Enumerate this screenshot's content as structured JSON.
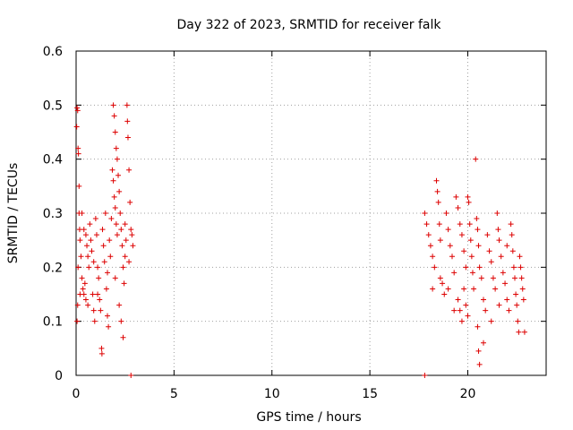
{
  "chart_data": {
    "type": "scatter",
    "title": "Day 322 of 2023, SRMTID for receiver falk",
    "xlabel": "GPS time / hours",
    "ylabel": "SRMTID / TECUs",
    "xlim": [
      0,
      24
    ],
    "ylim": [
      0,
      0.6
    ],
    "xticks": [
      0,
      5,
      10,
      15,
      20
    ],
    "xtick_labels": [
      "0",
      "5",
      "10",
      "15",
      "20"
    ],
    "yticks": [
      0,
      0.1,
      0.2,
      0.3,
      0.4,
      0.5,
      0.6
    ],
    "ytick_labels": [
      "0",
      "0.1",
      "0.2",
      "0.3",
      "0.4",
      "0.5",
      "0.6"
    ],
    "grid": true,
    "marker": "+",
    "color": "#dd0000",
    "series": [
      {
        "name": "SRMTID",
        "points": [
          [
            0.03,
            0.46
          ],
          [
            0.05,
            0.495
          ],
          [
            0.08,
            0.49
          ],
          [
            0.1,
            0.42
          ],
          [
            0.12,
            0.41
          ],
          [
            0.15,
            0.35
          ],
          [
            0.05,
            0.1
          ],
          [
            0.08,
            0.13
          ],
          [
            0.1,
            0.2
          ],
          [
            0.15,
            0.3
          ],
          [
            0.18,
            0.27
          ],
          [
            0.2,
            0.25
          ],
          [
            0.25,
            0.22
          ],
          [
            0.3,
            0.18
          ],
          [
            0.35,
            0.16
          ],
          [
            0.4,
            0.15
          ],
          [
            0.45,
            0.17
          ],
          [
            0.5,
            0.14
          ],
          [
            0.3,
            0.3
          ],
          [
            0.4,
            0.27
          ],
          [
            0.5,
            0.26
          ],
          [
            0.55,
            0.24
          ],
          [
            0.6,
            0.22
          ],
          [
            0.65,
            0.2
          ],
          [
            0.7,
            0.28
          ],
          [
            0.75,
            0.25
          ],
          [
            0.8,
            0.23
          ],
          [
            0.85,
            0.15
          ],
          [
            0.9,
            0.12
          ],
          [
            0.95,
            0.1
          ],
          [
            1.0,
            0.29
          ],
          [
            1.05,
            0.26
          ],
          [
            1.1,
            0.2
          ],
          [
            1.15,
            0.18
          ],
          [
            1.2,
            0.14
          ],
          [
            1.25,
            0.12
          ],
          [
            1.3,
            0.05
          ],
          [
            1.32,
            0.04
          ],
          [
            1.35,
            0.27
          ],
          [
            1.4,
            0.24
          ],
          [
            1.45,
            0.21
          ],
          [
            1.5,
            0.3
          ],
          [
            1.55,
            0.16
          ],
          [
            1.6,
            0.11
          ],
          [
            1.65,
            0.09
          ],
          [
            1.7,
            0.25
          ],
          [
            1.75,
            0.22
          ],
          [
            1.8,
            0.29
          ],
          [
            1.85,
            0.38
          ],
          [
            1.9,
            0.36
          ],
          [
            1.95,
            0.33
          ],
          [
            2.0,
            0.31
          ],
          [
            2.05,
            0.28
          ],
          [
            2.1,
            0.26
          ],
          [
            1.9,
            0.5
          ],
          [
            1.95,
            0.48
          ],
          [
            2.0,
            0.45
          ],
          [
            2.05,
            0.42
          ],
          [
            2.1,
            0.4
          ],
          [
            2.15,
            0.37
          ],
          [
            2.2,
            0.34
          ],
          [
            2.25,
            0.3
          ],
          [
            2.3,
            0.27
          ],
          [
            2.35,
            0.24
          ],
          [
            2.4,
            0.2
          ],
          [
            2.45,
            0.17
          ],
          [
            2.5,
            0.28
          ],
          [
            2.55,
            0.25
          ],
          [
            2.6,
            0.5
          ],
          [
            2.62,
            0.47
          ],
          [
            2.65,
            0.44
          ],
          [
            2.7,
            0.38
          ],
          [
            2.75,
            0.32
          ],
          [
            2.8,
            0.27
          ],
          [
            2.85,
            0.26
          ],
          [
            2.9,
            0.24
          ],
          [
            2.4,
            0.07
          ],
          [
            2.8,
            0.0
          ],
          [
            2.2,
            0.13
          ],
          [
            2.3,
            0.1
          ],
          [
            1.1,
            0.15
          ],
          [
            0.2,
            0.15
          ],
          [
            0.6,
            0.13
          ],
          [
            0.9,
            0.21
          ],
          [
            1.6,
            0.19
          ],
          [
            2.0,
            0.18
          ],
          [
            2.5,
            0.22
          ],
          [
            2.7,
            0.21
          ],
          [
            17.8,
            0.3
          ],
          [
            17.9,
            0.28
          ],
          [
            18.0,
            0.26
          ],
          [
            18.1,
            0.24
          ],
          [
            18.2,
            0.22
          ],
          [
            18.3,
            0.2
          ],
          [
            18.4,
            0.36
          ],
          [
            18.45,
            0.34
          ],
          [
            18.5,
            0.32
          ],
          [
            18.55,
            0.28
          ],
          [
            18.6,
            0.25
          ],
          [
            18.7,
            0.17
          ],
          [
            18.8,
            0.15
          ],
          [
            18.9,
            0.3
          ],
          [
            19.0,
            0.27
          ],
          [
            19.1,
            0.24
          ],
          [
            19.2,
            0.22
          ],
          [
            19.3,
            0.19
          ],
          [
            19.4,
            0.33
          ],
          [
            19.5,
            0.31
          ],
          [
            19.6,
            0.28
          ],
          [
            19.7,
            0.26
          ],
          [
            19.8,
            0.23
          ],
          [
            19.9,
            0.2
          ],
          [
            19.5,
            0.14
          ],
          [
            19.6,
            0.12
          ],
          [
            19.7,
            0.1
          ],
          [
            19.8,
            0.16
          ],
          [
            19.9,
            0.13
          ],
          [
            20.0,
            0.33
          ],
          [
            20.05,
            0.32
          ],
          [
            20.1,
            0.28
          ],
          [
            20.15,
            0.25
          ],
          [
            20.2,
            0.22
          ],
          [
            20.25,
            0.19
          ],
          [
            20.3,
            0.16
          ],
          [
            20.4,
            0.4
          ],
          [
            20.45,
            0.29
          ],
          [
            20.5,
            0.27
          ],
          [
            20.55,
            0.24
          ],
          [
            20.6,
            0.2
          ],
          [
            20.7,
            0.18
          ],
          [
            20.5,
            0.09
          ],
          [
            20.55,
            0.045
          ],
          [
            20.6,
            0.02
          ],
          [
            20.8,
            0.06
          ],
          [
            20.9,
            0.12
          ],
          [
            21.0,
            0.26
          ],
          [
            21.1,
            0.23
          ],
          [
            21.2,
            0.21
          ],
          [
            21.3,
            0.18
          ],
          [
            21.4,
            0.16
          ],
          [
            21.5,
            0.3
          ],
          [
            21.55,
            0.27
          ],
          [
            21.6,
            0.25
          ],
          [
            21.7,
            0.22
          ],
          [
            21.8,
            0.19
          ],
          [
            21.9,
            0.17
          ],
          [
            22.0,
            0.14
          ],
          [
            22.1,
            0.12
          ],
          [
            22.2,
            0.28
          ],
          [
            22.25,
            0.26
          ],
          [
            22.3,
            0.23
          ],
          [
            22.35,
            0.2
          ],
          [
            22.4,
            0.18
          ],
          [
            22.45,
            0.15
          ],
          [
            22.5,
            0.13
          ],
          [
            22.55,
            0.1
          ],
          [
            22.6,
            0.08
          ],
          [
            22.65,
            0.22
          ],
          [
            22.7,
            0.2
          ],
          [
            22.75,
            0.18
          ],
          [
            22.8,
            0.16
          ],
          [
            22.85,
            0.14
          ],
          [
            22.9,
            0.08
          ],
          [
            18.2,
            0.16
          ],
          [
            18.6,
            0.18
          ],
          [
            19.0,
            0.16
          ],
          [
            19.3,
            0.12
          ],
          [
            20.0,
            0.11
          ],
          [
            20.8,
            0.14
          ],
          [
            21.2,
            0.1
          ],
          [
            21.6,
            0.13
          ],
          [
            22.0,
            0.24
          ],
          [
            17.8,
            0.0
          ]
        ]
      }
    ]
  }
}
